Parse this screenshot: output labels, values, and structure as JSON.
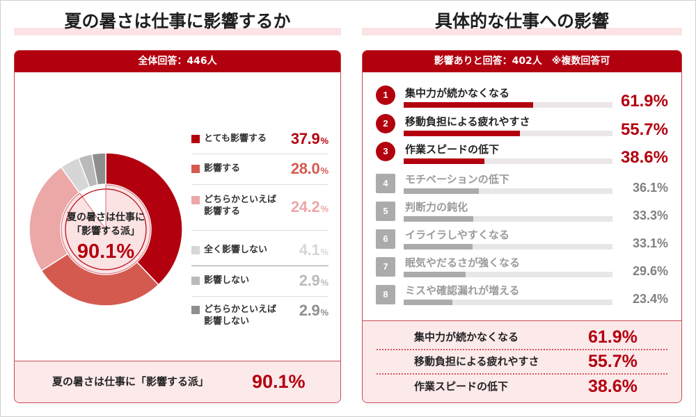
{
  "chart_data": [
    {
      "type": "pie",
      "title": "夏の暑さは仕事に影響するか",
      "subtitle": "全体回答：446人",
      "categories": [
        "とても影響する",
        "影響する",
        "どちらかといえば\n影響する",
        "全く影響しない",
        "影響しない",
        "どちらかといえば\n影響しない"
      ],
      "values": [
        37.9,
        28.0,
        24.2,
        4.1,
        2.9,
        2.9
      ],
      "value_labels": [
        "37.9",
        "28.0",
        "24.2",
        "4.1",
        "2.9",
        "2.9"
      ],
      "unit": "%",
      "colors": [
        "#b3000f",
        "#d45a50",
        "#eba8a6",
        "#d6d6d6",
        "#bababa",
        "#8e8e8e"
      ],
      "legend_position": "right",
      "influenced_share": 90.1,
      "center_label": [
        "夏の暑さは仕事に",
        "「影響する派」"
      ],
      "center_value": "90.1%",
      "summary": {
        "label": "夏の暑さは仕事に「影響する派」",
        "value": "90.1%"
      }
    },
    {
      "type": "bar",
      "orientation": "horizontal",
      "title": "具体的な仕事への影響",
      "subtitle": "影響ありと回答：402人　※複数回答可",
      "ranks": [
        "1",
        "2",
        "3",
        "4",
        "5",
        "6",
        "7",
        "8"
      ],
      "categories": [
        "集中力が続かなくなる",
        "移動負担による疲れやすさ",
        "作業スピードの低下",
        "モチベーションの低下",
        "判断力の鈍化",
        "イライラしやすくなる",
        "眠気やだるさが強くなる",
        "ミスや確認漏れが増える"
      ],
      "values": [
        61.9,
        55.7,
        38.6,
        36.1,
        33.3,
        33.1,
        29.6,
        23.4
      ],
      "value_labels": [
        "61.9%",
        "55.7%",
        "38.6%",
        "36.1%",
        "33.3%",
        "33.1%",
        "29.6%",
        "23.4%"
      ],
      "xlim": [
        0,
        100
      ],
      "highlight_color": "#b3000f",
      "muted_color": "#ababab"
    }
  ]
}
